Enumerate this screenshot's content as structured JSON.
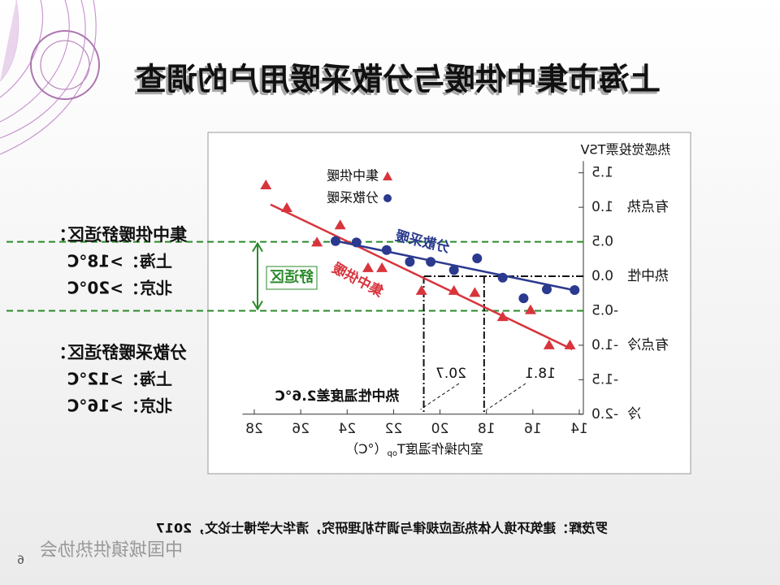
{
  "slide": {
    "title": "上海市集中供暖与分散采暖用户的调查",
    "notes": [
      {
        "heading": "集中供暖舒适区：",
        "lines": [
          "上海：>18°C",
          "北京：>20°C"
        ]
      },
      {
        "heading": "分散采暖舒适区：",
        "lines": [
          "上海：>12°C",
          "北京：>16°C"
        ]
      }
    ],
    "citation": "罗茂辉：建筑环境人体热适应规律与调节机理研究，清华大学博士论文，2017",
    "footer": "中国城镇供热协会",
    "page": 6
  },
  "chart_data": {
    "type": "scatter",
    "y_title": "热感觉投票TSV",
    "x_title": "室内操作温度T",
    "x_title_sub": "op",
    "x_title_unit": "（°C）",
    "xlim": [
      13.8,
      28.3
    ],
    "xticks": [
      14,
      16,
      18,
      20,
      22,
      24,
      26,
      28
    ],
    "ylim": [
      -2.0,
      1.6
    ],
    "yticks": [
      {
        "value": 1.5,
        "label": "1.5"
      },
      {
        "value": 1.0,
        "label": "1.0"
      },
      {
        "value": 0.5,
        "label": "0.5"
      },
      {
        "value": 0.0,
        "label": "0.0"
      },
      {
        "value": -0.5,
        "label": "-0.5"
      },
      {
        "value": -1.0,
        "label": "-1.0"
      },
      {
        "value": -1.5,
        "label": "-1.5"
      },
      {
        "value": -2.0,
        "label": "-2.0"
      }
    ],
    "y_descriptors": [
      {
        "value": 1.0,
        "label": "有点热"
      },
      {
        "value": 0.0,
        "label": "热中性"
      },
      {
        "value": -1.0,
        "label": "有点冷"
      },
      {
        "value": -2.0,
        "label": "冷"
      }
    ],
    "series": [
      {
        "name": "集中供暖",
        "color": "#d8343c",
        "marker": "triangle",
        "x": [
          27.5,
          26.6,
          25.3,
          24.3,
          23.1,
          22.5,
          20.8,
          19.4,
          18.5,
          17.3,
          16.1,
          15.3,
          14.4
        ],
        "values": [
          1.32,
          0.99,
          0.49,
          0.74,
          0.12,
          0.12,
          -0.21,
          -0.21,
          -0.24,
          -0.59,
          -0.49,
          -1.0,
          -1.0
        ],
        "label": "集中供暖",
        "fit_x": [
          27.3,
          14.3
        ],
        "fit_values": [
          1.04,
          -1.06
        ]
      },
      {
        "name": "分散采暖",
        "color": "#2b3a8e",
        "marker": "circle",
        "x": [
          24.5,
          23.6,
          22.3,
          21.3,
          20.4,
          19.4,
          18.4,
          17.3,
          16.4,
          15.4,
          14.2
        ],
        "values": [
          0.51,
          0.49,
          0.38,
          0.21,
          0.21,
          0.09,
          0.26,
          -0.02,
          -0.32,
          -0.19,
          -0.2
        ],
        "label": "分散采暖",
        "fit_x": [
          24.6,
          14.1
        ],
        "fit_values": [
          0.52,
          -0.21
        ]
      }
    ],
    "comfort_band": [
      -0.5,
      0.5
    ],
    "comfort_label": "舒适区",
    "neutral_tsv": 0.0,
    "neutral_temps": [
      20.7,
      18.1
    ],
    "neutral_note": "热中性温度差2.6°C"
  }
}
